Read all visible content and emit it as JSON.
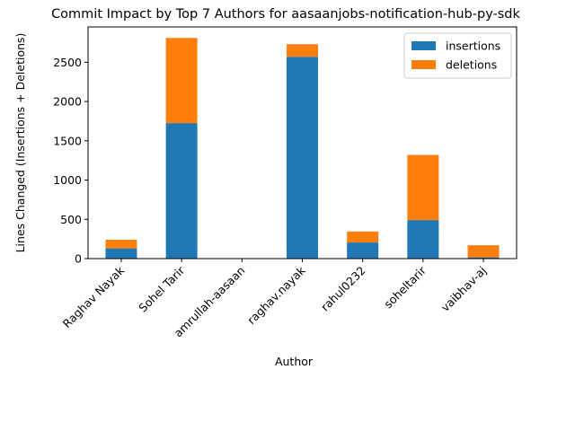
{
  "chart_data": {
    "type": "bar",
    "stacked": true,
    "title": "Commit Impact by Top 7 Authors for aasaanjobs-notification-hub-py-sdk",
    "xlabel": "Author",
    "ylabel": "Lines Changed (Insertions + Deletions)",
    "categories": [
      "Raghav Nayak",
      "Sohel Tarir",
      "amrullah-aasaan",
      "raghav.nayak",
      "rahul0232",
      "soheltarir",
      "vaibhav-aj"
    ],
    "series": [
      {
        "name": "insertions",
        "color": "#1f77b4",
        "values": [
          130,
          1725,
          0,
          2570,
          205,
          490,
          15
        ]
      },
      {
        "name": "deletions",
        "color": "#ff7f0e",
        "values": [
          110,
          1085,
          0,
          160,
          140,
          830,
          155
        ]
      }
    ],
    "ylim": [
      0,
      2950
    ],
    "yticks": [
      0,
      500,
      1000,
      1500,
      2000,
      2500
    ],
    "legend": "top-right",
    "grid": false
  }
}
